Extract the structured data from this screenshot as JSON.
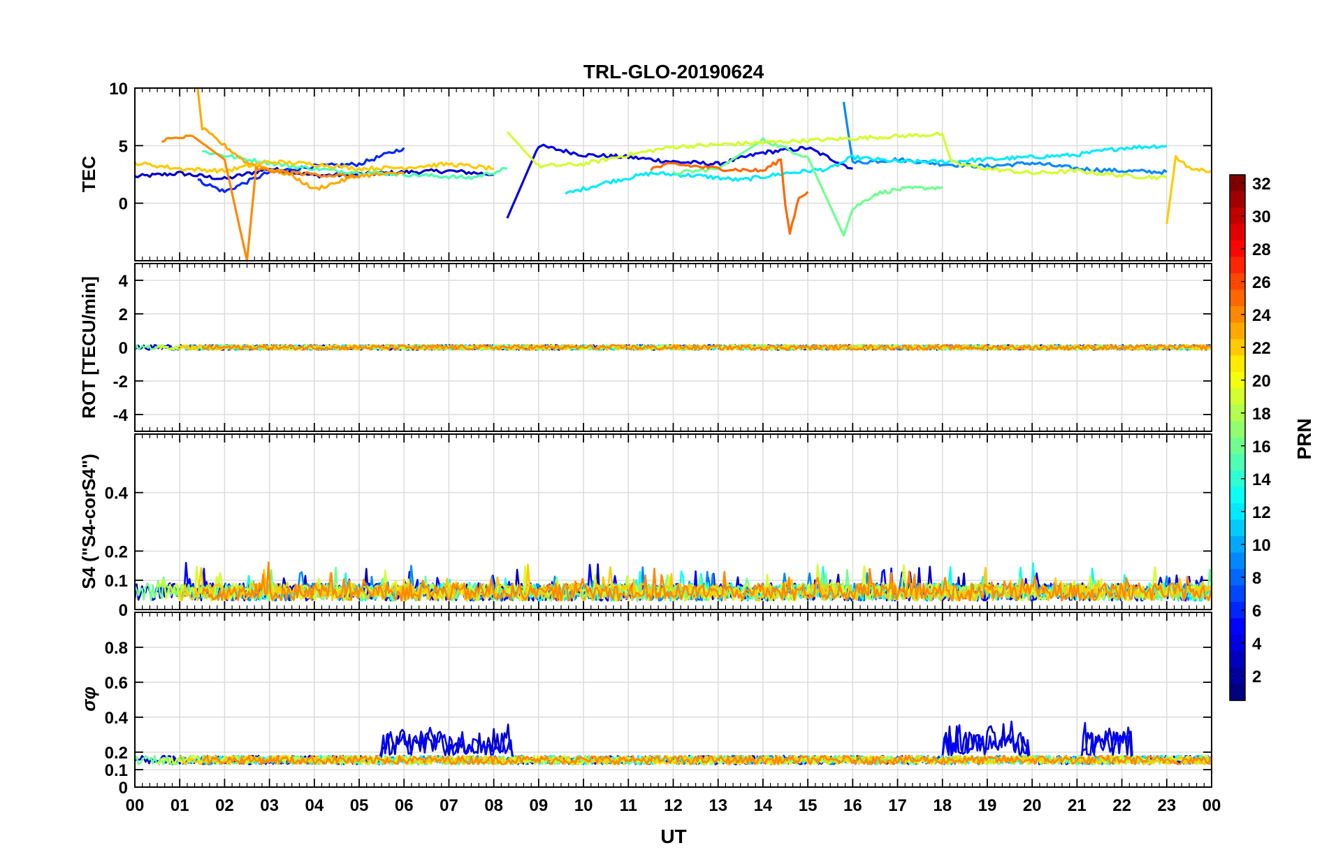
{
  "chart_data": {
    "type": "line",
    "title": "TRL-GLO-20190624",
    "xlabel": "UT",
    "x_tick_labels": [
      "00",
      "01",
      "02",
      "03",
      "04",
      "05",
      "06",
      "07",
      "08",
      "09",
      "10",
      "11",
      "12",
      "13",
      "14",
      "15",
      "16",
      "17",
      "18",
      "19",
      "20",
      "21",
      "22",
      "23",
      "00"
    ],
    "x_range_hours": [
      0,
      24
    ],
    "grid": true,
    "colorbar": {
      "label": "PRN",
      "range": [
        1,
        32
      ],
      "tick_labels": [
        "2",
        "4",
        "6",
        "8",
        "10",
        "12",
        "14",
        "16",
        "18",
        "20",
        "22",
        "24",
        "26",
        "28",
        "30",
        "32"
      ],
      "colormap": "jet"
    },
    "panels": [
      {
        "id": "tec",
        "ylabel": "TEC",
        "ylim": [
          -5,
          10
        ],
        "y_tick_labels": [
          "0",
          "5",
          "10"
        ],
        "series": [
          {
            "prn": 3,
            "x": [
              0.0,
              1.0,
              2.0,
              3.0,
              4.0,
              5.0,
              6.0,
              7.0,
              8.0
            ],
            "y": [
              2.3,
              2.6,
              2.1,
              3.0,
              2.4,
              2.5,
              2.7,
              2.8,
              2.5
            ]
          },
          {
            "prn": 4,
            "x": [
              8.3,
              9.0,
              10.0,
              11.0,
              12.0,
              13.0,
              14.0,
              15.0,
              16.0
            ],
            "y": [
              -1.3,
              5.0,
              4.2,
              4.0,
              3.6,
              3.4,
              4.4,
              4.8,
              3.0
            ]
          },
          {
            "prn": 6,
            "x": [
              1.4,
              2.0,
              3.0,
              4.0,
              5.0,
              6.0
            ],
            "y": [
              2.0,
              1.0,
              2.7,
              3.2,
              3.4,
              4.8
            ]
          },
          {
            "prn": 9,
            "x": [
              15.8,
              16.0,
              17.0,
              18.0,
              19.0,
              20.0,
              21.0,
              22.0,
              23.0
            ],
            "y": [
              8.8,
              3.5,
              3.8,
              3.4,
              3.2,
              3.5,
              3.0,
              2.8,
              2.7
            ]
          },
          {
            "prn": 12,
            "x": [
              9.6,
              10.5,
              11.5,
              12.5,
              13.5,
              14.5,
              15.5,
              16.0,
              17.0,
              18.0,
              19.0,
              20.0,
              21.0,
              22.0,
              23.0
            ],
            "y": [
              0.8,
              1.8,
              2.6,
              2.4,
              2.0,
              2.6,
              3.0,
              4.0,
              3.6,
              3.6,
              3.8,
              4.0,
              4.2,
              4.8,
              5.0
            ]
          },
          {
            "prn": 15,
            "x": [
              1.5,
              2.5,
              3.5,
              4.5,
              5.5,
              6.5,
              7.5,
              8.3
            ],
            "y": [
              4.5,
              3.8,
              3.2,
              2.8,
              2.6,
              2.4,
              2.2,
              3.0
            ]
          },
          {
            "prn": 16,
            "x": [
              12.0,
              13.0,
              14.0,
              15.0,
              15.8,
              16.0,
              16.5,
              17.0,
              17.5,
              18.0
            ],
            "y": [
              2.6,
              3.0,
              5.5,
              4.0,
              -2.8,
              -0.5,
              0.8,
              1.2,
              1.3,
              1.4
            ]
          },
          {
            "prn": 19,
            "x": [
              8.3,
              9.0,
              10.0,
              11.0,
              12.0,
              18.0,
              18.2,
              19.0,
              20.0,
              21.0,
              22.0,
              23.0
            ],
            "y": [
              6.2,
              3.2,
              3.4,
              4.2,
              4.9,
              6.0,
              3.5,
              3.0,
              2.6,
              2.8,
              2.4,
              2.2
            ]
          },
          {
            "prn": 22,
            "x": [
              0.0,
              1.0,
              2.0,
              3.0,
              4.0,
              5.0,
              6.0,
              7.0,
              8.0
            ],
            "y": [
              3.5,
              3.0,
              2.8,
              3.6,
              3.4,
              3.0,
              3.1,
              3.4,
              3.0
            ]
          },
          {
            "prn": 23,
            "x": [
              1.4,
              1.5,
              2.0,
              2.5,
              3.0,
              3.5,
              4.0,
              5.0,
              6.0
            ],
            "y": [
              10.0,
              6.5,
              5.0,
              3.5,
              3.0,
              2.4,
              1.2,
              2.4,
              2.6
            ]
          },
          {
            "prn": 24,
            "x": [
              0.6,
              1.3,
              2.0,
              2.5,
              2.7,
              3.0,
              4.0,
              5.0
            ],
            "y": [
              5.5,
              5.8,
              3.8,
              -5.0,
              3.0,
              2.8,
              2.5,
              2.3
            ]
          },
          {
            "prn": 25,
            "x": [
              11.5,
              12.0,
              13.0,
              14.0,
              14.4,
              14.5,
              14.6,
              14.7,
              14.8,
              15.0
            ],
            "y": [
              3.0,
              3.4,
              3.0,
              2.8,
              3.8,
              -0.2,
              -2.6,
              -1.0,
              0.5,
              1.0
            ]
          },
          {
            "prn": 22,
            "x": [
              23.0,
              23.2,
              23.5,
              24.0
            ],
            "y": [
              -1.8,
              4.0,
              3.0,
              2.8
            ]
          }
        ]
      },
      {
        "id": "rot",
        "ylabel": "ROT [TECU/min]",
        "ylim": [
          -5,
          5
        ],
        "y_tick_labels": [
          "-4",
          "-2",
          "0",
          "2",
          "4"
        ],
        "series_summary": "ROT fluctuates within about ±0.3 TECU/min for all PRNs over 00–24 UT"
      },
      {
        "id": "s4",
        "ylabel": "S4 (\"S4-corS4\")",
        "ylim": [
          0,
          0.6
        ],
        "y_tick_labels": [
          "0",
          "0.1",
          "0.2",
          "0.4"
        ],
        "series_summary": "S4 values mostly between 0 and 0.1 with spikes up to ~0.18 for all PRNs"
      },
      {
        "id": "sigma_phi",
        "ylabel": "σφ",
        "ylim": [
          0,
          1
        ],
        "y_tick_labels": [
          "0",
          "0.1",
          "0.2",
          "0.4",
          "0.6",
          "0.8"
        ],
        "series_summary": "σφ baseline ~0.13–0.2; enhanced to ~0.2–0.38 (PRN 3–4) during 05:30–08:30 and 18–20 UT"
      }
    ]
  }
}
